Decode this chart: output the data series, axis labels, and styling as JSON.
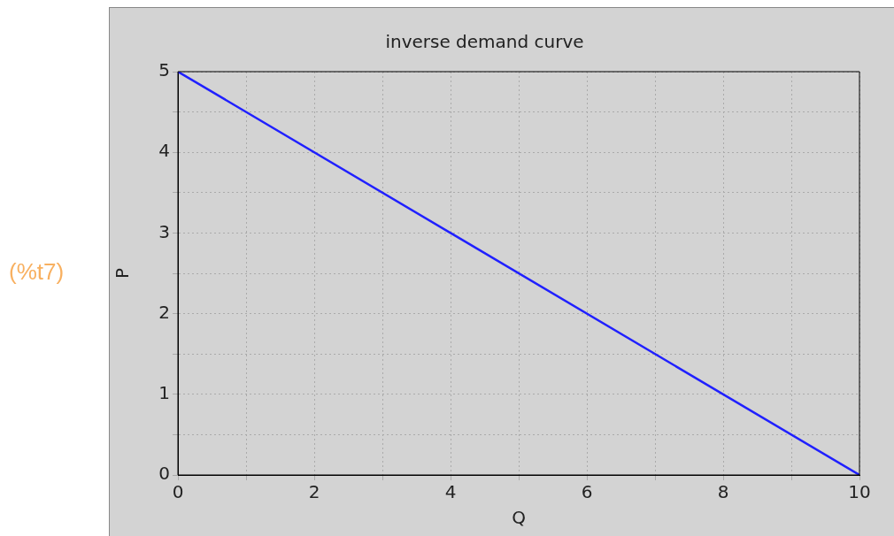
{
  "chart_data": {
    "type": "line",
    "title": "inverse demand curve",
    "xlabel": "Q",
    "ylabel": "P",
    "x": [
      0,
      10
    ],
    "series": [
      {
        "color": "#2020ff",
        "values": [
          5,
          0
        ]
      }
    ],
    "xlim": [
      0,
      10
    ],
    "xticks": [
      0,
      {
        "value": 1,
        "label": null
      },
      2,
      {
        "value": 3,
        "label": null
      },
      4,
      {
        "value": 5,
        "label": null
      },
      6,
      {
        "value": 7,
        "label": null
      },
      8,
      {
        "value": 9,
        "label": null
      },
      10
    ],
    "ylim": [
      0,
      5
    ],
    "yticks": [
      0,
      {
        "value": 0.5,
        "label": null
      },
      1,
      {
        "value": 1.5,
        "label": null
      },
      2,
      {
        "value": 2.5,
        "label": null
      },
      3,
      {
        "value": 3.5,
        "label": null
      },
      4,
      {
        "value": 4.5,
        "label": null
      },
      5
    ],
    "grid": true,
    "legend": false,
    "marker": "none",
    "line_style": "solid",
    "annotations": [
      "(%t7)"
    ]
  }
}
